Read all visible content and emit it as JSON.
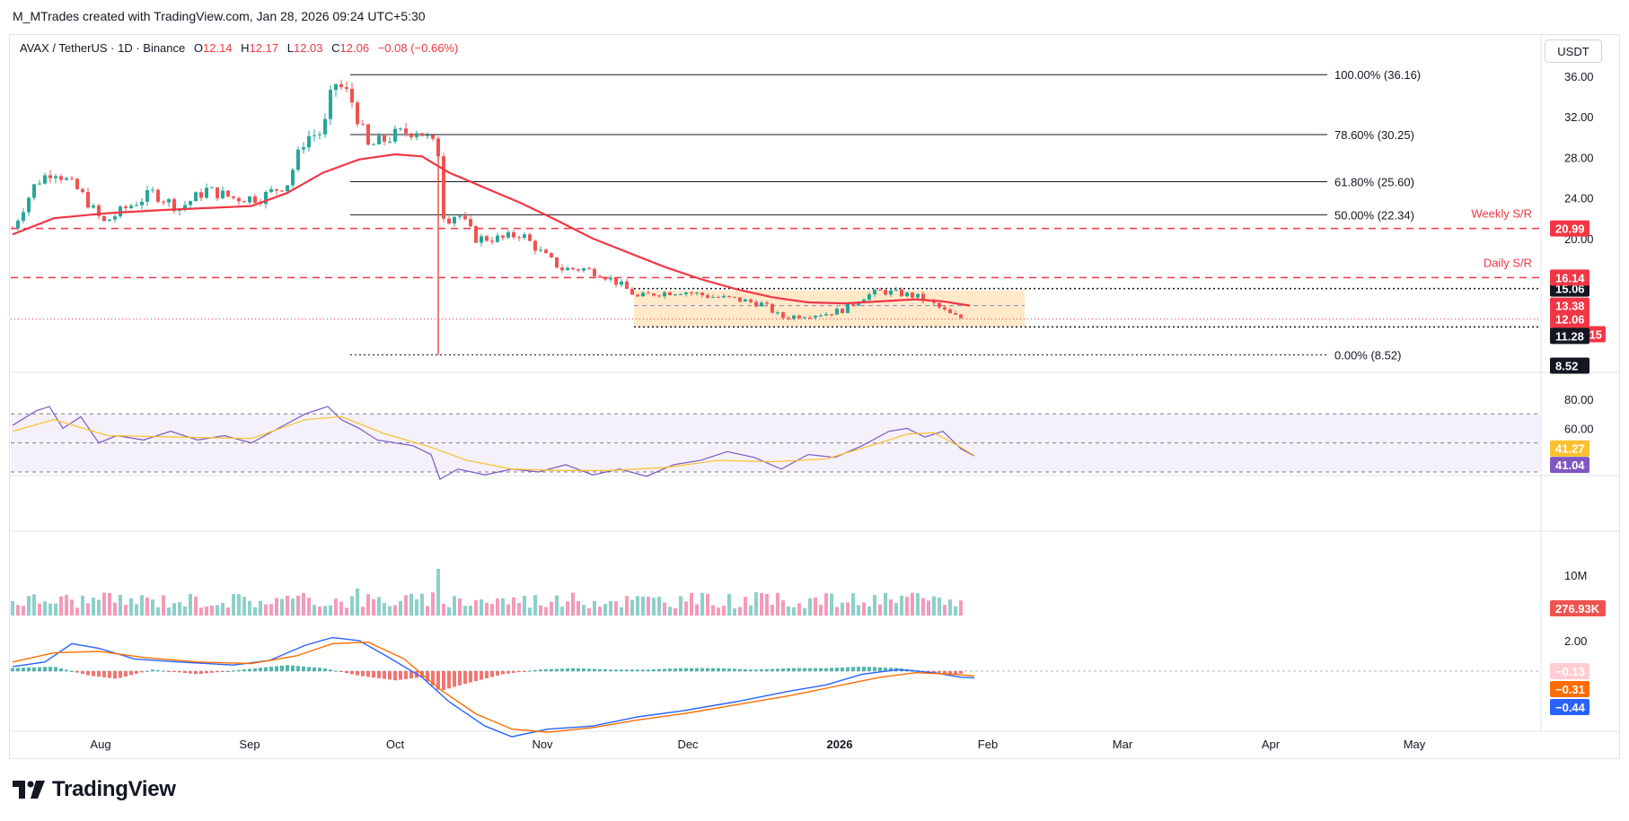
{
  "header": {
    "title": "M_MTrades created with TradingView.com, Jan 28, 2026 09:24 UTC+5:30"
  },
  "symbol": {
    "name": "AVAX / TetherUS · 1D · Binance",
    "open_label": "O",
    "open": "12.14",
    "high_label": "H",
    "high": "12.17",
    "low_label": "L",
    "low": "12.03",
    "close_label": "C",
    "close": "12.06",
    "change": "−0.08 (−0.66%)"
  },
  "currency_button": "USDT",
  "colors": {
    "up": "#26a69a",
    "down": "#ef5350",
    "ma": "#f23645",
    "rsi": "#7e57c2",
    "rsi_ma": "#fbc02d",
    "macd": "#2962ff",
    "signal": "#ff6d00",
    "range_box": "#ffe0b2",
    "sr_line": "#f23645"
  },
  "price_axis": [
    "36.00",
    "32.00",
    "28.00",
    "24.00",
    "20.00"
  ],
  "fib_levels": [
    {
      "label": "100.00% (36.16)",
      "price": 36.16
    },
    {
      "label": "78.60% (30.25)",
      "price": 30.25
    },
    {
      "label": "61.80% (25.60)",
      "price": 25.6
    },
    {
      "label": "50.00% (22.34)",
      "price": 22.34
    },
    {
      "label": "0.00% (8.52)",
      "price": 8.52
    }
  ],
  "sr_levels": [
    {
      "label": "Weekly S/R",
      "price": 20.99,
      "badge": "20.99"
    },
    {
      "label": "Daily S/R",
      "price": 16.14,
      "badge": "16.14"
    }
  ],
  "price_badges": [
    {
      "text": "15.06",
      "bg": "#131722"
    },
    {
      "text": "13.38",
      "bg": "#f23645"
    },
    {
      "text": "12.06",
      "bg": "#f23645"
    },
    {
      "text": "20:05:15",
      "bg": "#f23645"
    },
    {
      "text": "11.28",
      "bg": "#131722"
    },
    {
      "text": "8.52",
      "bg": "#131722"
    }
  ],
  "rsi_axis": [
    "80.00",
    "60.00"
  ],
  "rsi_badges": [
    {
      "text": "41.27",
      "bg": "#fbc02d",
      "fg": "#131722"
    },
    {
      "text": "41.04",
      "bg": "#7e57c2",
      "fg": "#ffffff"
    }
  ],
  "volume_axis": [
    "10M"
  ],
  "volume_badge": "276.93K",
  "macd_axis": [
    "2.00"
  ],
  "macd_badges": [
    {
      "text": "−0.13",
      "bg": "#ffcdd2",
      "fg": "#131722"
    },
    {
      "text": "−0.31",
      "bg": "#ff6d00",
      "fg": "#ffffff"
    },
    {
      "text": "−0.44",
      "bg": "#2962ff",
      "fg": "#ffffff"
    }
  ],
  "time_axis": [
    "Aug",
    "Sep",
    "Oct",
    "Nov",
    "Dec",
    "2026",
    "Feb",
    "Mar",
    "Apr",
    "May"
  ],
  "footer": {
    "brand": "TradingView"
  }
}
